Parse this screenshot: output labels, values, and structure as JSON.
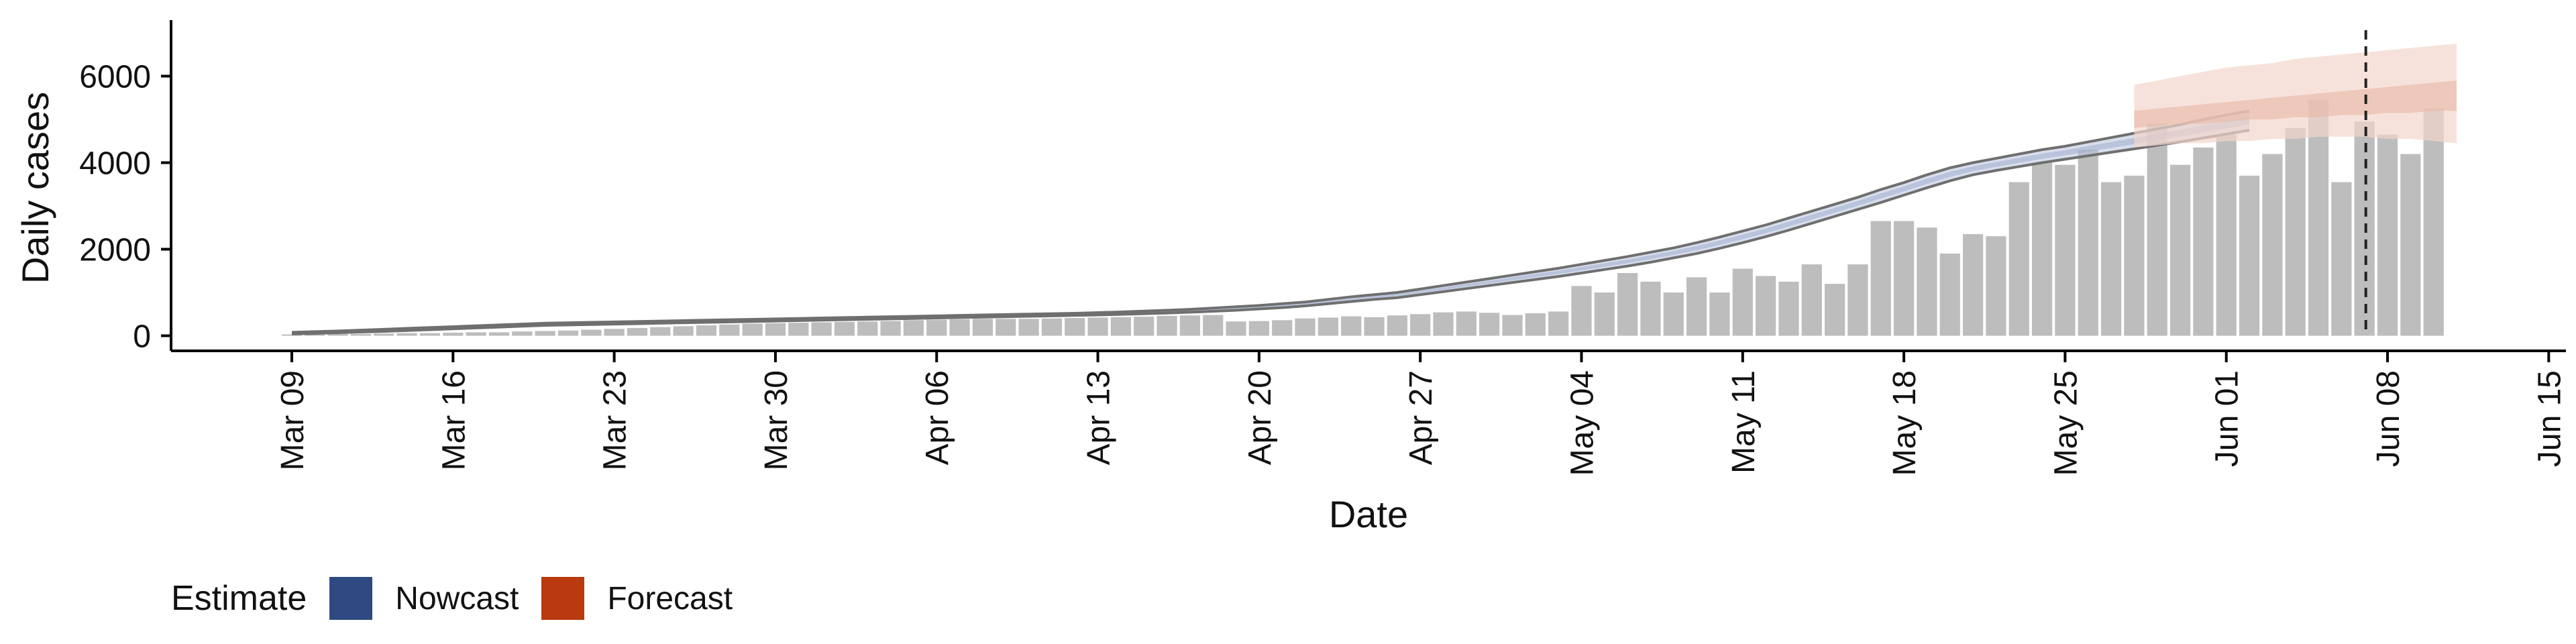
{
  "chart_data": {
    "type": "bar",
    "xlabel": "Date",
    "ylabel": "Daily cases",
    "ylim": [
      -300,
      7200
    ],
    "y_ticks": [
      0,
      2000,
      4000,
      6000
    ],
    "y_tick_labels": [
      "0",
      "2000",
      "4000",
      "6000"
    ],
    "x_start": "2020-03-03",
    "x_tick_labels": [
      "Mar 09",
      "Mar 16",
      "Mar 23",
      "Mar 30",
      "Apr 06",
      "Apr 13",
      "Apr 20",
      "Apr 27",
      "May 04",
      "May 11",
      "May 18",
      "May 25",
      "Jun 01",
      "Jun 08",
      "Jun 15"
    ],
    "grid": false,
    "bar_color": "#bdbdbd",
    "nowcast_color": "#3b4f8c",
    "forecast_color": "#b83a0e",
    "vline_date": "Jun 07",
    "bars": {
      "start_date": "Mar 09",
      "values": [
        30,
        30,
        40,
        40,
        50,
        60,
        60,
        70,
        80,
        80,
        100,
        110,
        120,
        140,
        160,
        180,
        200,
        220,
        240,
        260,
        280,
        290,
        300,
        310,
        320,
        330,
        340,
        360,
        370,
        380,
        390,
        390,
        390,
        400,
        410,
        420,
        430,
        440,
        460,
        470,
        480,
        330,
        340,
        360,
        400,
        420,
        450,
        430,
        470,
        500,
        540,
        560,
        530,
        480,
        520,
        560,
        1150,
        1000,
        1450,
        1250,
        1000,
        1350,
        1000,
        1550,
        1380,
        1250,
        1650,
        1200,
        1650,
        2650,
        2650,
        2500,
        1900,
        2350,
        2300,
        3550,
        4000,
        3950,
        4300,
        3550,
        3700,
        4900,
        3950,
        4350,
        4650,
        3700,
        4200,
        4800,
        5450,
        3550,
        4950,
        4650,
        4200,
        5250
      ]
    },
    "series": [
      {
        "name": "Nowcast",
        "start_date": "Mar 09",
        "upper": [
          80,
          95,
          110,
          130,
          150,
          170,
          190,
          210,
          230,
          250,
          270,
          290,
          300,
          310,
          320,
          330,
          340,
          350,
          360,
          370,
          380,
          390,
          400,
          410,
          420,
          430,
          440,
          450,
          460,
          470,
          480,
          490,
          500,
          510,
          520,
          535,
          550,
          570,
          590,
          610,
          640,
          670,
          700,
          740,
          780,
          840,
          900,
          950,
          1000,
          1080,
          1160,
          1240,
          1320,
          1400,
          1480,
          1560,
          1650,
          1740,
          1830,
          1930,
          2030,
          2150,
          2280,
          2420,
          2560,
          2720,
          2880,
          3040,
          3200,
          3380,
          3540,
          3720,
          3880,
          4000,
          4100,
          4200,
          4300,
          4380,
          4480,
          4580,
          4680,
          4780,
          4880,
          5000,
          5100,
          5200
        ],
        "lower": [
          40,
          55,
          70,
          85,
          100,
          120,
          140,
          160,
          180,
          200,
          220,
          240,
          250,
          260,
          270,
          280,
          290,
          300,
          310,
          320,
          330,
          340,
          350,
          360,
          370,
          380,
          390,
          400,
          410,
          420,
          430,
          440,
          450,
          460,
          470,
          480,
          495,
          510,
          525,
          545,
          565,
          590,
          620,
          650,
          690,
          740,
          790,
          840,
          880,
          950,
          1020,
          1090,
          1160,
          1230,
          1300,
          1370,
          1450,
          1530,
          1610,
          1700,
          1800,
          1900,
          2020,
          2150,
          2290,
          2440,
          2600,
          2760,
          2920,
          3080,
          3250,
          3420,
          3580,
          3720,
          3820,
          3910,
          4000,
          4080,
          4160,
          4240,
          4320,
          4400,
          4480,
          4570,
          4660,
          4750
        ]
      },
      {
        "name": "Forecast",
        "start_date": "May 28",
        "upper_outer": [
          5800,
          5900,
          6000,
          6100,
          6200,
          6250,
          6300,
          6400,
          6450,
          6500,
          6550,
          6600,
          6650,
          6700,
          6750
        ],
        "upper_inner": [
          5200,
          5250,
          5300,
          5350,
          5400,
          5450,
          5500,
          5550,
          5600,
          5650,
          5700,
          5750,
          5800,
          5850,
          5900
        ],
        "lower_inner": [
          4800,
          4850,
          4900,
          4900,
          4950,
          5000,
          5000,
          5050,
          5050,
          5100,
          5100,
          5150,
          5150,
          5200,
          5200
        ],
        "lower_outer": [
          4350,
          4400,
          4450,
          4450,
          4500,
          4500,
          4550,
          4550,
          4600,
          4600,
          4600,
          4550,
          4550,
          4500,
          4450
        ]
      }
    ]
  },
  "legend": {
    "title": "Estimate",
    "items": [
      {
        "label": "Nowcast",
        "color": "#2f4a82"
      },
      {
        "label": "Forecast",
        "color": "#b83a0e"
      }
    ]
  }
}
